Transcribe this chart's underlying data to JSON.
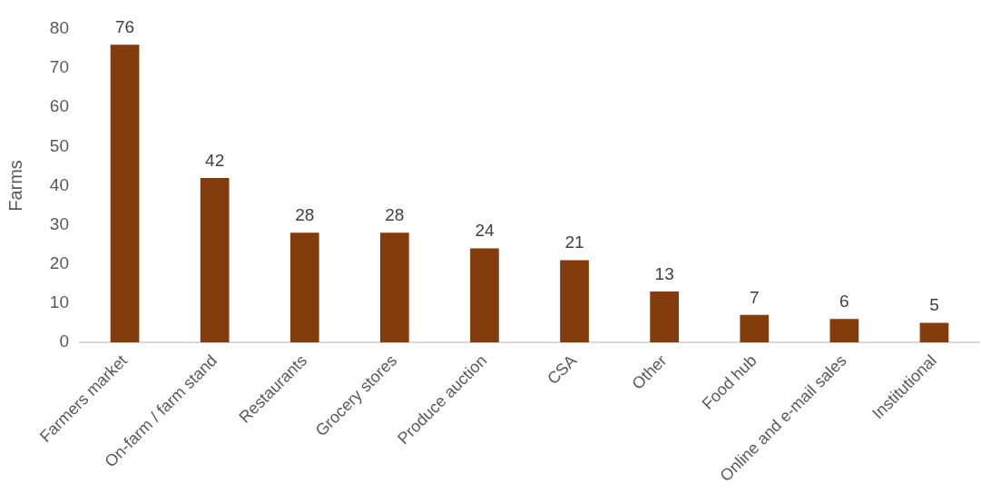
{
  "chart_data": {
    "type": "bar",
    "ylabel": "Farms",
    "categories": [
      "Farmers market",
      "On-farm / farm stand",
      "Restaurants",
      "Grocery stores",
      "Produce auction",
      "CSA",
      "Other",
      "Food hub",
      "Online and e-mail sales",
      "Institutional"
    ],
    "values": [
      76,
      42,
      28,
      28,
      24,
      21,
      13,
      7,
      6,
      5
    ],
    "color": "#843c0c",
    "ylim": [
      0,
      80
    ],
    "yticks": [
      0,
      10,
      20,
      30,
      40,
      50,
      60,
      70,
      80
    ],
    "data_labels": true
  }
}
